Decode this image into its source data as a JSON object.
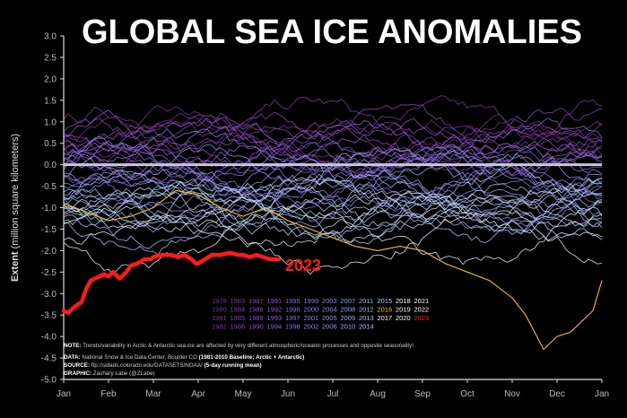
{
  "chart_data": {
    "type": "line",
    "title": "GLOBAL SEA ICE ANOMALIES",
    "ylabel_bold": "Extent",
    "ylabel_rest": " (million square kilometers)",
    "ylim": [
      -5.0,
      3.0
    ],
    "yticks": [
      "3.0",
      "2.5",
      "2.0",
      "1.5",
      "1.0",
      "0.5",
      "0.0",
      "-0.5",
      "-1.0",
      "-1.5",
      "-2.0",
      "-2.5",
      "-3.0",
      "-3.5",
      "-4.0",
      "-4.5",
      "-5.0"
    ],
    "months": [
      "Jan",
      "Feb",
      "Mar",
      "Apr",
      "May",
      "Jun",
      "Jul",
      "Aug",
      "Sep",
      "Oct",
      "Nov",
      "Dec",
      "Jan"
    ],
    "grid": false,
    "zero_line": true,
    "legend_placement": "lower-center",
    "legend_rows": [
      [
        "1979",
        "1983",
        "1987",
        "1991",
        "1995",
        "1999",
        "2003",
        "2007",
        "2011",
        "2015",
        "2018",
        "2021"
      ],
      [
        "1980",
        "1984",
        "1988",
        "1992",
        "1996",
        "2000",
        "2004",
        "2008",
        "2012",
        "2016",
        "2019",
        "2022"
      ],
      [
        "1981",
        "1985",
        "1989",
        "1993",
        "1997",
        "2001",
        "2005",
        "2009",
        "2013",
        "2017",
        "2020",
        "2023"
      ],
      [
        "1982",
        "1986",
        "1990",
        "1994",
        "1998",
        "2002",
        "2006",
        "2010",
        "2014"
      ]
    ],
    "highlight_series": {
      "name": "2023",
      "color": "#ff1a1a",
      "x_month": [
        0.0,
        0.1,
        0.25,
        0.4,
        0.5,
        0.6,
        0.8,
        0.9,
        1.0,
        1.1,
        1.25,
        1.4,
        1.5,
        1.65,
        1.8,
        1.95,
        2.0,
        2.2,
        2.4,
        2.55,
        2.7,
        2.85,
        2.95,
        3.0,
        3.15,
        3.3,
        3.5,
        3.7,
        3.9,
        4.0,
        4.15,
        4.3,
        4.45,
        4.6,
        4.8
      ],
      "values": [
        -3.4,
        -3.45,
        -3.3,
        -3.2,
        -2.9,
        -2.7,
        -2.6,
        -2.55,
        -2.6,
        -2.5,
        -2.65,
        -2.5,
        -2.35,
        -2.3,
        -2.2,
        -2.2,
        -2.15,
        -2.1,
        -2.1,
        -2.15,
        -2.1,
        -2.2,
        -2.3,
        -2.3,
        -2.2,
        -2.1,
        -2.1,
        -2.05,
        -2.1,
        -2.1,
        -2.15,
        -2.1,
        -2.15,
        -2.2,
        -2.2
      ]
    },
    "series_2016": {
      "name": "2016",
      "color": "#f2c12e",
      "x_month": [
        0,
        0.5,
        1,
        1.5,
        2,
        2.5,
        3,
        3.5,
        4,
        4.5,
        5,
        5.5,
        6,
        6.5,
        7,
        7.5,
        8,
        8.5,
        9,
        9.5,
        10,
        10.3,
        10.5,
        10.7,
        11,
        11.3,
        11.6,
        11.8,
        12
      ],
      "values": [
        -0.9,
        -1.1,
        -1.3,
        -1.2,
        -1.0,
        -0.6,
        -0.7,
        -1.0,
        -1.2,
        -1.0,
        -1.3,
        -1.5,
        -1.7,
        -1.9,
        -2.0,
        -1.9,
        -2.0,
        -2.3,
        -2.5,
        -2.7,
        -3.1,
        -3.5,
        -3.9,
        -4.3,
        -4.0,
        -3.9,
        -3.6,
        -3.4,
        -2.7
      ]
    },
    "highlight_label": "2023",
    "notes": {
      "note_label": "NOTE:",
      "note_text": " Trends/variability in Arctic & Antarctic sea ice are affected by very different atmospheric/oceanic processes and opposite seasonality!",
      "data_label": "DATA:",
      "data_text": " National Snow & Ice Data Center, Boulder CO ",
      "data_bold": "(1981-2010 Baseline; Arctic + Antarctic)",
      "source_label": "SOURCE:",
      "source_text": " ftp://sidads.colorado.edu/DATASETS/NOAA/ ",
      "source_bold": "(5-day running mean)",
      "graphic_label": "GRAPHIC:",
      "graphic_text": " Zachary Labe (@ZLabe)"
    },
    "colors": {
      "background": "#000000",
      "zero_line": "#c8c8d8",
      "early_years": "#8b3fa8",
      "late_years": "#ffffff",
      "axis": "#ffffff"
    }
  }
}
